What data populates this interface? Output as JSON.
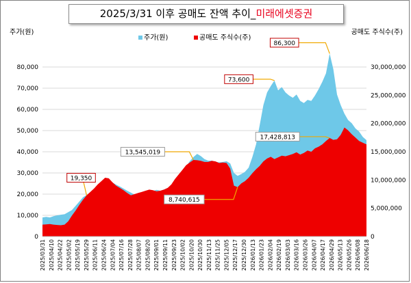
{
  "title": {
    "main": "2025/3/31 이후 공매도 잔액 추이_",
    "highlight": "미래에셋증권"
  },
  "colors": {
    "price": "#6ec8e8",
    "short": "#ee0000",
    "annotation_line": "#f0a800",
    "grid": "#d9d9d9",
    "highlight": "#e8001c"
  },
  "chart_data": {
    "type": "area",
    "title": "2025/3/31 이후 공매도 잔액 추이_미래에셋증권",
    "ylabel_left": "주가(원)",
    "ylabel_right": "공매도 주식수(주)",
    "ylim_left": [
      0,
      90000
    ],
    "ylim_right": [
      0,
      33750000
    ],
    "yticks_left": [
      "0",
      "10,000",
      "20,000",
      "30,000",
      "40,000",
      "50,000",
      "60,000",
      "70,000",
      "80,000"
    ],
    "yticks_right": [
      "0",
      "5,000,000",
      "10,000,000",
      "15,000,000",
      "20,000,000",
      "25,000,000",
      "30,000,000"
    ],
    "xticks": [
      "2025/03/31",
      "2025/04/10",
      "2025/04/22",
      "2025/05/02",
      "2025/05/19",
      "2025/05/29",
      "2025/06/11",
      "2025/06/24",
      "2025/07/04",
      "2025/07/16",
      "2025/07/28",
      "2025/08/07",
      "2025/08/20",
      "2025/09/01",
      "2025/09/11",
      "2025/09/23",
      "2025/10/02",
      "2025/10/20",
      "2025/10/30",
      "2025/11/13",
      "2025/11/25",
      "2025/12/05",
      "2025/12/17",
      "2025/12/30",
      "2026/01/13",
      "2026/01/23",
      "2026/02/04",
      "2026/02/19",
      "2026/03/03",
      "2026/03/16",
      "2026/03/26",
      "2026/04/07",
      "2026/04/17",
      "2026/04/29",
      "2026/05/13",
      "2026/05/26",
      "2026/06/08",
      "2026/06/18"
    ],
    "legend": [
      "주가(원)",
      "공매도 주식수(주)"
    ],
    "legend_position": "top-center",
    "grid": true,
    "series": [
      {
        "name": "주가(원)",
        "axis": "left",
        "values": [
          9000,
          9300,
          9000,
          9600,
          10000,
          10300,
          10500,
          11500,
          12500,
          14500,
          16500,
          18500,
          19600,
          20500,
          22000,
          23000,
          24000,
          25000,
          25800,
          25500,
          24500,
          23600,
          22600,
          21600,
          20700,
          19800,
          20500,
          20800,
          21000,
          21200,
          21500,
          22000,
          21600,
          22200,
          23000,
          23300,
          24000,
          25500,
          29000,
          33000,
          35500,
          37500,
          39000,
          38000,
          36500,
          35800,
          35800,
          35300,
          35000,
          35200,
          35500,
          34500,
          30000,
          28600,
          29500,
          30500,
          32500,
          37500,
          43500,
          52500,
          62000,
          68000,
          71000,
          73600,
          69000,
          70500,
          68000,
          66500,
          65500,
          67000,
          64000,
          63000,
          64500,
          64000,
          66500,
          69500,
          73000,
          77000,
          86300,
          79000,
          67000,
          62000,
          58000,
          55000,
          53500,
          51000,
          49500,
          47000,
          45500
        ]
      },
      {
        "name": "공매도 주식수(주)",
        "axis": "right",
        "values": [
          2100000,
          2150000,
          2200000,
          2100000,
          2050000,
          2000000,
          2100000,
          2700000,
          3700000,
          4600000,
          5600000,
          6500000,
          7300000,
          7900000,
          8500000,
          9200000,
          9800000,
          10400000,
          10300000,
          9600000,
          9000000,
          8600000,
          8200000,
          7700000,
          7300000,
          7500000,
          7700000,
          7900000,
          8100000,
          8300000,
          8200000,
          8000000,
          8100000,
          8300000,
          8600000,
          9200000,
          10200000,
          11000000,
          11800000,
          12600000,
          13100000,
          13545019,
          13500000,
          13400000,
          13200000,
          13200000,
          13400000,
          13300000,
          13000000,
          13100000,
          13000000,
          12000000,
          9000000,
          8740615,
          9400000,
          9800000,
          10400000,
          11200000,
          11900000,
          12500000,
          13300000,
          13800000,
          14100000,
          13700000,
          14000000,
          14300000,
          14200000,
          14400000,
          14600000,
          14900000,
          14500000,
          14800000,
          15200000,
          15000000,
          15600000,
          15900000,
          16300000,
          16900000,
          17428813,
          17100000,
          17200000,
          18000000,
          19300000,
          18800000,
          18100000,
          17500000,
          16900000,
          16600000,
          16300000
        ]
      }
    ],
    "annotations": [
      {
        "text": "73,600",
        "series": "주가(원)",
        "value": 73600,
        "style": "red-border"
      },
      {
        "text": "86,300",
        "series": "주가(원)",
        "value": 86300,
        "style": "red-border"
      },
      {
        "text": "19,350",
        "series": "주가(원)",
        "value": 19350,
        "style": "red-border"
      },
      {
        "text": "13,545,019",
        "series": "공매도 주식수(주)",
        "value": 13545019,
        "style": "white"
      },
      {
        "text": "8,740,615",
        "series": "공매도 주식수(주)",
        "value": 8740615,
        "style": "white"
      },
      {
        "text": "17,428,813",
        "series": "공매도 주식수(주)",
        "value": 17428813,
        "style": "white"
      }
    ]
  }
}
